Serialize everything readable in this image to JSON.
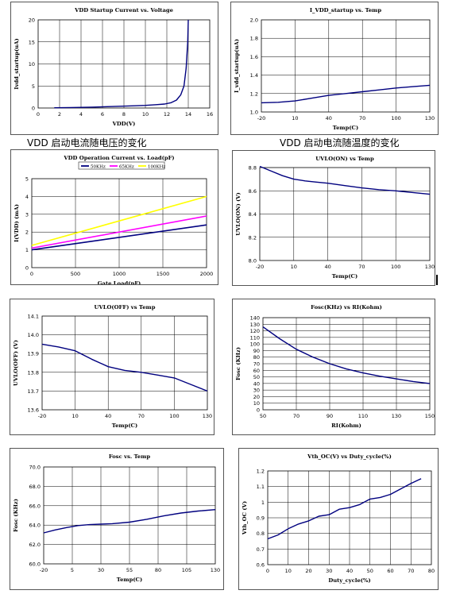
{
  "captions": {
    "left": "VDD 启动电流随电压的变化",
    "right": "VDD 启动电流随温度的变化"
  },
  "chart_data": [
    {
      "id": "c1",
      "type": "line",
      "title": "VDD Startup Current vs. Voltage",
      "xlabel": "VDD(V)",
      "ylabel": "Ivdd_startup(uA)",
      "xlim": [
        0,
        16
      ],
      "ylim": [
        0,
        20
      ],
      "xticks": [
        "0",
        "2",
        "4",
        "6",
        "8",
        "10",
        "12",
        "14",
        "16"
      ],
      "yticks": [
        "0",
        "5",
        "10",
        "15",
        "20"
      ],
      "grid": true,
      "series": [
        {
          "color": "#00007f",
          "x": [
            1.5,
            3,
            5,
            7,
            9,
            10,
            11,
            11.8,
            12.4,
            12.9,
            13.3,
            13.6,
            13.8,
            13.95,
            14.0
          ],
          "y": [
            0.05,
            0.1,
            0.2,
            0.35,
            0.5,
            0.6,
            0.75,
            0.9,
            1.2,
            1.8,
            3.0,
            5.0,
            9.0,
            15.0,
            20.0
          ]
        }
      ]
    },
    {
      "id": "c2",
      "type": "line",
      "title": "I_VDD_startup vs. Temp",
      "xlabel": "Temp(C)",
      "ylabel": "I_vdd_startup(uA)",
      "xlim": [
        -20,
        130
      ],
      "ylim": [
        1.0,
        2.0
      ],
      "xticks": [
        "-20",
        "10",
        "40",
        "70",
        "100",
        "130"
      ],
      "yticks": [
        "1.0",
        "1.2",
        "1.4",
        "1.6",
        "1.8",
        "2.0"
      ],
      "grid": true,
      "series": [
        {
          "color": "#00007f",
          "x": [
            -20,
            -5,
            10,
            25,
            40,
            55,
            70,
            85,
            100,
            115,
            130
          ],
          "y": [
            1.1,
            1.105,
            1.12,
            1.15,
            1.18,
            1.2,
            1.22,
            1.24,
            1.26,
            1.275,
            1.29
          ]
        }
      ]
    },
    {
      "id": "c3",
      "type": "line",
      "title": "VDD Operation Current vs. Load(pF)",
      "xlabel": "Gate Load(pF)",
      "ylabel": "I(VDD) (mA)",
      "xlim": [
        0,
        2000
      ],
      "ylim": [
        0,
        5
      ],
      "xticks": [
        "0",
        "500",
        "1000",
        "1500",
        "2000"
      ],
      "yticks": [
        "0",
        "1",
        "2",
        "3",
        "4",
        "5"
      ],
      "grid": true,
      "legend": [
        "50KHz",
        "65KHz",
        "100KHz"
      ],
      "series": [
        {
          "name": "50KHz",
          "color": "#000080",
          "x": [
            0,
            2000
          ],
          "y": [
            1.0,
            2.4
          ]
        },
        {
          "name": "65KHz",
          "color": "#ff00ff",
          "x": [
            0,
            2000
          ],
          "y": [
            1.1,
            2.9
          ]
        },
        {
          "name": "100KHz",
          "color": "#ffff00",
          "x": [
            0,
            2000
          ],
          "y": [
            1.25,
            4.0
          ]
        }
      ]
    },
    {
      "id": "c4",
      "type": "line",
      "title": "UVLO(ON) vs Temp",
      "xlabel": "Temp(C)",
      "ylabel": "UVLO(ON) (V)",
      "xlim": [
        -20,
        130
      ],
      "ylim": [
        8.0,
        8.8
      ],
      "xticks": [
        "-20",
        "10",
        "40",
        "70",
        "100",
        "130"
      ],
      "yticks": [
        "8.0",
        "8.2",
        "8.4",
        "8.6",
        "8.8"
      ],
      "grid": true,
      "series": [
        {
          "color": "#00007f",
          "x": [
            -20,
            -10,
            0,
            10,
            20,
            30,
            40,
            55,
            70,
            85,
            100,
            115,
            130
          ],
          "y": [
            8.81,
            8.77,
            8.73,
            8.7,
            8.685,
            8.675,
            8.665,
            8.645,
            8.625,
            8.61,
            8.6,
            8.585,
            8.57
          ]
        }
      ]
    },
    {
      "id": "c5",
      "type": "line",
      "title": "UVLO(OFF) vs Temp",
      "xlabel": "Temp(C)",
      "ylabel": "UVLO(OFF) (V)",
      "xlim": [
        -20,
        130
      ],
      "ylim": [
        13.6,
        14.1
      ],
      "xticks": [
        "-20",
        "10",
        "40",
        "70",
        "100",
        "130"
      ],
      "yticks": [
        "13.6",
        "13.7",
        "13.8",
        "13.9",
        "14.0",
        "14.1"
      ],
      "grid": true,
      "series": [
        {
          "color": "#00007f",
          "x": [
            -20,
            -5,
            10,
            25,
            40,
            55,
            70,
            85,
            100,
            115,
            130
          ],
          "y": [
            13.95,
            13.935,
            13.915,
            13.87,
            13.83,
            13.81,
            13.8,
            13.785,
            13.77,
            13.735,
            13.7
          ]
        }
      ]
    },
    {
      "id": "c6",
      "type": "line",
      "title": "Fosc(KHz) vs RI(Kohm)",
      "xlabel": "RI(Kohm)",
      "ylabel": "Fosc (KHz)",
      "xlim": [
        50,
        150
      ],
      "ylim": [
        0,
        140
      ],
      "xticks": [
        "50",
        "70",
        "90",
        "110",
        "130",
        "150"
      ],
      "yticks": [
        "0",
        "10",
        "20",
        "30",
        "40",
        "50",
        "60",
        "70",
        "80",
        "90",
        "100",
        "110",
        "120",
        "130",
        "140"
      ],
      "grid": true,
      "series": [
        {
          "color": "#00007f",
          "x": [
            50,
            60,
            70,
            80,
            90,
            100,
            110,
            120,
            130,
            140,
            150
          ],
          "y": [
            126,
            108,
            92,
            80,
            70,
            62,
            56,
            51,
            47,
            43,
            40
          ]
        }
      ]
    },
    {
      "id": "c7",
      "type": "line",
      "title": "Fosc vs. Temp",
      "xlabel": "Temp(C)",
      "ylabel": "Fosc (KHz)",
      "xlim": [
        -20,
        130
      ],
      "ylim": [
        60.0,
        70.0
      ],
      "xticks": [
        "-20",
        "5",
        "30",
        "55",
        "80",
        "105",
        "130"
      ],
      "yticks": [
        "60.0",
        "62.0",
        "64.0",
        "66.0",
        "68.0",
        "70.0"
      ],
      "grid": true,
      "series": [
        {
          "color": "#00007f",
          "x": [
            -20,
            -10,
            0,
            10,
            20,
            30,
            40,
            55,
            70,
            85,
            100,
            115,
            130
          ],
          "y": [
            63.2,
            63.5,
            63.75,
            63.95,
            64.05,
            64.1,
            64.15,
            64.3,
            64.6,
            64.95,
            65.25,
            65.45,
            65.6
          ]
        }
      ]
    },
    {
      "id": "c8",
      "type": "line",
      "title": "Vth_OC(V) vs Duty_cycle(%)",
      "xlabel": "Duty_cycle(%)",
      "ylabel": "Vth_OC (V)",
      "xlim": [
        0,
        80
      ],
      "ylim": [
        0.6,
        1.2
      ],
      "xticks": [
        "0",
        "10",
        "20",
        "30",
        "40",
        "50",
        "60",
        "70",
        "80"
      ],
      "yticks": [
        "0.6",
        "0.7",
        "0.8",
        "0.9",
        "1",
        "1.1",
        "1.2"
      ],
      "grid": true,
      "series": [
        {
          "color": "#00007f",
          "x": [
            0,
            5,
            10,
            15,
            20,
            25,
            30,
            35,
            40,
            45,
            50,
            55,
            60,
            65,
            70,
            75
          ],
          "y": [
            0.765,
            0.79,
            0.83,
            0.86,
            0.88,
            0.91,
            0.92,
            0.955,
            0.965,
            0.985,
            1.02,
            1.03,
            1.05,
            1.085,
            1.12,
            1.15
          ]
        }
      ]
    }
  ]
}
